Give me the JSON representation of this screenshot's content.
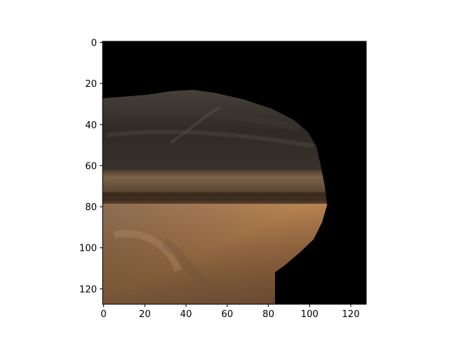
{
  "figure": {
    "type": "image",
    "pixel_grid": [
      128,
      128
    ],
    "x_ticks": [
      "0",
      "20",
      "40",
      "60",
      "80",
      "100",
      "120"
    ],
    "y_ticks": [
      "0",
      "20",
      "40",
      "60",
      "80",
      "100",
      "120"
    ],
    "background_color": "#000000",
    "image_content": "masked photo region: dark grey-brown upper band, horizontal wooden/brown stripe near row 65-80, tan/orange lower region; black background outside the mask"
  },
  "colors": {
    "dark_top": "#2b2723",
    "mid_stripe": "#6a5238",
    "stripe_dark": "#3a2a1a",
    "lower_tan": "#b07c4e",
    "lower_shadow": "#6e5440"
  }
}
